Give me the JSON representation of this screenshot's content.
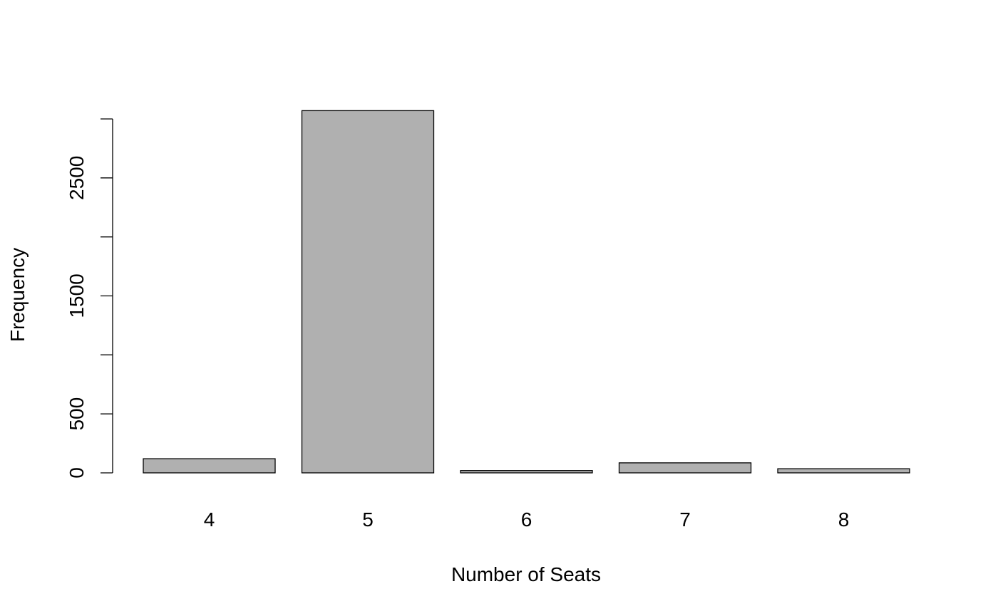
{
  "chart_data": {
    "type": "bar",
    "categories": [
      "4",
      "5",
      "6",
      "7",
      "8"
    ],
    "values": [
      120,
      3070,
      20,
      85,
      35
    ],
    "title": "",
    "xlabel": "Number of Seats",
    "ylabel": "Frequency",
    "ylim": [
      0,
      3000
    ],
    "yticks": [
      0,
      500,
      1000,
      1500,
      2000,
      2500,
      3000
    ],
    "ytick_labels": [
      "0",
      "500",
      "",
      "1500",
      "",
      "2500",
      ""
    ],
    "grid": false,
    "colors": {
      "bar_fill": "#b0b0b0",
      "bar_stroke": "#000000"
    }
  }
}
